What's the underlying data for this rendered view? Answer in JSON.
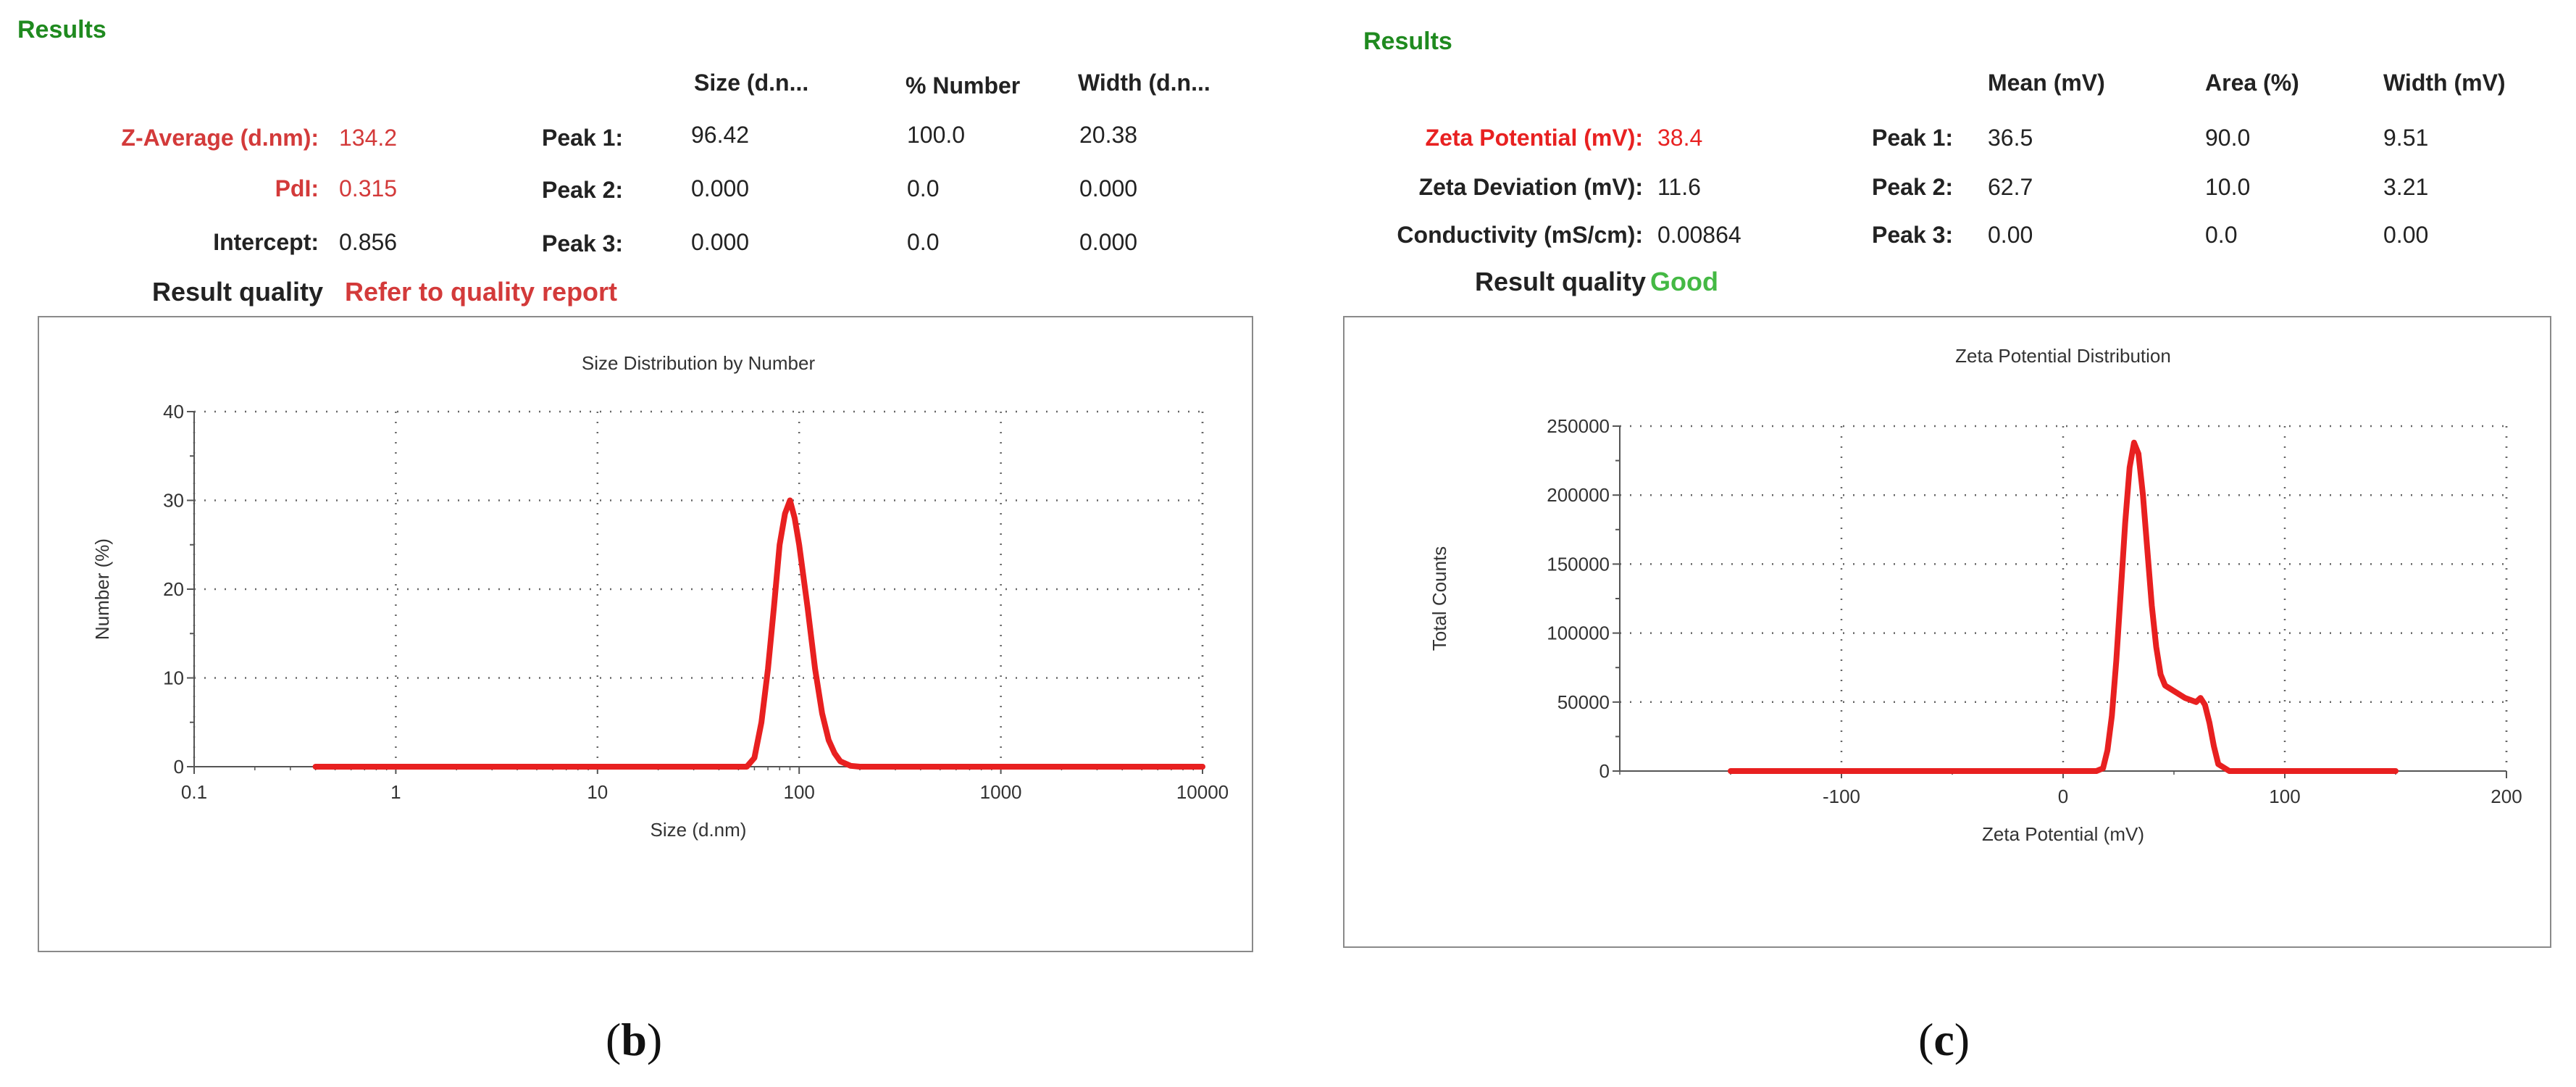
{
  "panel_b": {
    "results_title": "Results",
    "headers": {
      "size": "Size (d.n...",
      "pct": "% Number",
      "width": "Width (d.n..."
    },
    "z_average": {
      "label": "Z-Average (d.nm):",
      "value": "134.2"
    },
    "pdi": {
      "label": "PdI:",
      "value": "0.315"
    },
    "intercept": {
      "label": "Intercept:",
      "value": "0.856"
    },
    "peaks": [
      {
        "label": "Peak 1:",
        "size": "96.42",
        "pct": "100.0",
        "width": "20.38"
      },
      {
        "label": "Peak 2:",
        "size": "0.000",
        "pct": "0.0",
        "width": "0.000"
      },
      {
        "label": "Peak 3:",
        "size": "0.000",
        "pct": "0.0",
        "width": "0.000"
      }
    ],
    "quality_label": "Result quality",
    "quality_value": "Refer to quality report",
    "caption_open": "(",
    "caption_letter": "b",
    "caption_close": ")"
  },
  "panel_c": {
    "results_title": "Results",
    "headers": {
      "mean": "Mean (mV)",
      "area": "Area (%)",
      "width": "Width (mV)"
    },
    "zeta_potential": {
      "label": "Zeta Potential (mV):",
      "value": "38.4"
    },
    "zeta_deviation": {
      "label": "Zeta Deviation (mV):",
      "value": "11.6"
    },
    "conductivity": {
      "label": "Conductivity (mS/cm):",
      "value": "0.00864"
    },
    "peaks": [
      {
        "label": "Peak 1:",
        "mean": "36.5",
        "area": "90.0",
        "width": "9.51"
      },
      {
        "label": "Peak 2:",
        "mean": "62.7",
        "area": "10.0",
        "width": "3.21"
      },
      {
        "label": "Peak 3:",
        "mean": "0.00",
        "area": "0.0",
        "width": "0.00"
      }
    ],
    "quality_label": "Result quality",
    "quality_value": "Good",
    "caption_open": "(",
    "caption_letter": "c",
    "caption_close": ")"
  },
  "chart_data": [
    {
      "type": "line",
      "title": "Size Distribution by Number",
      "xlabel": "Size (d.nm)",
      "ylabel": "Number (%)",
      "x_scale": "log",
      "xlim": [
        0.1,
        10000
      ],
      "ylim": [
        0,
        40
      ],
      "x_ticks": [
        "0.1",
        "1",
        "10",
        "100",
        "1000",
        "10000"
      ],
      "y_ticks": [
        "0",
        "10",
        "20",
        "30",
        "40"
      ],
      "grid": true,
      "line_color": "#e82020",
      "series": [
        {
          "x": [
            0.4,
            10,
            55,
            60,
            65,
            70,
            75,
            80,
            85,
            90,
            95,
            100,
            110,
            120,
            130,
            140,
            150,
            160,
            180,
            200,
            300,
            1000,
            10000
          ],
          "y": [
            0,
            0,
            0,
            1,
            5,
            11,
            18,
            25,
            28.5,
            30,
            28,
            25,
            18,
            11,
            6,
            3,
            1.5,
            0.6,
            0.1,
            0,
            0,
            0,
            0
          ]
        }
      ]
    },
    {
      "type": "line",
      "title": "Zeta Potential Distribution",
      "xlabel": "Zeta Potential (mV)",
      "ylabel": "Total Counts",
      "xlim": [
        -200,
        200
      ],
      "ylim": [
        0,
        250000
      ],
      "x_ticks": [
        "-100",
        "0",
        "100",
        "200"
      ],
      "y_ticks": [
        "0",
        "50000",
        "100000",
        "150000",
        "200000",
        "250000"
      ],
      "grid": true,
      "line_color": "#e82020",
      "series": [
        {
          "x": [
            -150,
            0,
            15,
            18,
            20,
            22,
            24,
            26,
            28,
            30,
            32,
            34,
            36,
            38,
            40,
            42,
            44,
            46,
            48,
            50,
            55,
            60,
            62,
            64,
            66,
            68,
            70,
            75,
            100,
            150
          ],
          "y": [
            0,
            0,
            0,
            2000,
            15000,
            40000,
            80000,
            130000,
            180000,
            220000,
            238000,
            230000,
            200000,
            160000,
            120000,
            90000,
            70000,
            62000,
            60000,
            58000,
            53000,
            50000,
            53000,
            48000,
            35000,
            18000,
            5000,
            0,
            0,
            0
          ]
        }
      ]
    }
  ]
}
